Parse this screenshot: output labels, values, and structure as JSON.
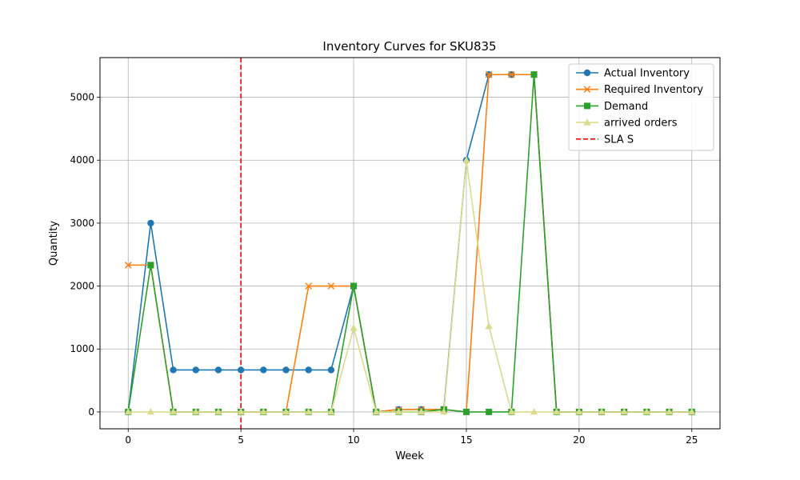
{
  "chart_data": {
    "type": "line",
    "title": "Inventory Curves for SKU835",
    "xlabel": "Week",
    "ylabel": "Quantity",
    "xlim": [
      -1.25,
      26.25
    ],
    "ylim": [
      -268,
      5630
    ],
    "xticks": [
      0,
      5,
      10,
      15,
      20,
      25
    ],
    "yticks": [
      0,
      1000,
      2000,
      3000,
      4000,
      5000
    ],
    "grid": true,
    "legend_position": "top-right",
    "series": [
      {
        "name": "Actual Inventory",
        "color": "#1f77b4",
        "marker": "circle",
        "x": [
          0,
          1,
          2,
          3,
          4,
          5,
          6,
          7,
          8,
          9,
          10,
          11,
          12,
          13,
          14,
          15,
          16,
          17,
          18,
          19,
          20,
          21,
          22,
          23,
          24,
          25
        ],
        "values": [
          0,
          3000,
          667,
          667,
          667,
          667,
          667,
          667,
          667,
          667,
          2000,
          0,
          40,
          40,
          40,
          4000,
          5360,
          5360,
          5360,
          0,
          0,
          0,
          0,
          0,
          0,
          0
        ]
      },
      {
        "name": "Required Inventory",
        "color": "#ff7f0e",
        "marker": "x",
        "x": [
          0,
          1,
          2,
          3,
          4,
          5,
          6,
          7,
          8,
          9,
          10,
          11,
          12,
          13,
          14,
          15,
          16,
          17,
          18,
          19,
          20,
          21,
          22,
          23,
          24,
          25
        ],
        "values": [
          2333,
          2333,
          0,
          0,
          0,
          0,
          0,
          0,
          2000,
          2000,
          2000,
          0,
          40,
          40,
          40,
          0,
          5360,
          5360,
          5360,
          0,
          0,
          0,
          0,
          0,
          0,
          0
        ]
      },
      {
        "name": "Demand",
        "color": "#2ca02c",
        "marker": "square",
        "x": [
          0,
          1,
          2,
          3,
          4,
          5,
          6,
          7,
          8,
          9,
          10,
          11,
          12,
          13,
          14,
          15,
          16,
          17,
          18,
          19,
          20,
          21,
          22,
          23,
          24,
          25
        ],
        "values": [
          0,
          2333,
          0,
          0,
          0,
          0,
          0,
          0,
          0,
          0,
          2000,
          0,
          0,
          0,
          40,
          0,
          0,
          0,
          5360,
          0,
          0,
          0,
          0,
          0,
          0,
          0
        ]
      },
      {
        "name": "arrived orders",
        "color": "#dbdb8d",
        "marker": "triangle",
        "x": [
          0,
          1,
          2,
          3,
          4,
          5,
          6,
          7,
          8,
          9,
          10,
          11,
          12,
          13,
          14,
          15,
          16,
          17,
          18,
          19,
          20,
          21,
          22,
          23,
          24,
          25
        ],
        "values": [
          0,
          0,
          0,
          0,
          0,
          0,
          0,
          0,
          0,
          0,
          1333,
          0,
          0,
          0,
          0,
          4000,
          1360,
          0,
          0,
          0,
          0,
          0,
          0,
          0,
          0,
          0
        ]
      }
    ],
    "vline": {
      "name": "SLA S",
      "x": 5,
      "color": "#ff0000",
      "style": "dashed"
    }
  }
}
